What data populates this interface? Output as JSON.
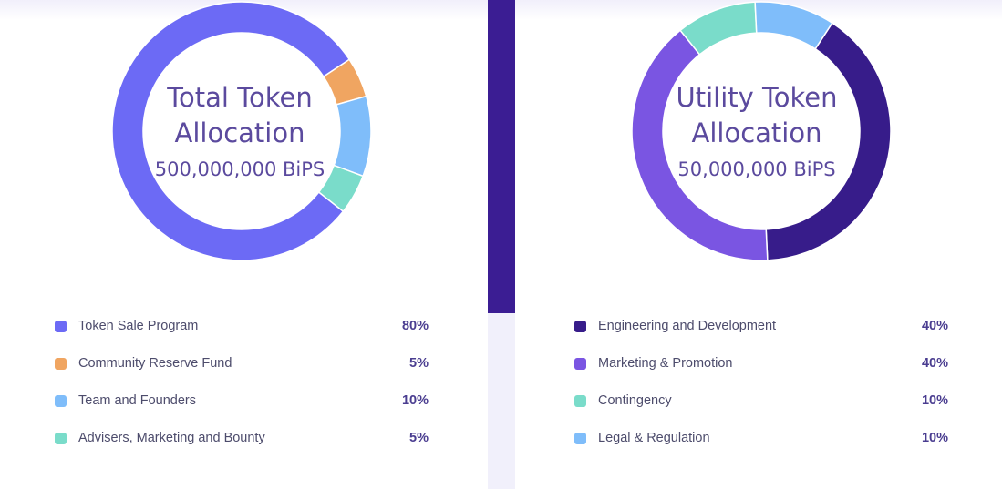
{
  "chart_data": [
    {
      "type": "pie",
      "donut": true,
      "title": "Total Token Allocation",
      "subtitle": "500,000,000 BiPS",
      "series": [
        {
          "label": "Token Sale Program",
          "value": 80,
          "value_label": "80%",
          "color": "#6c6af5"
        },
        {
          "label": "Community Reserve Fund",
          "value": 5,
          "value_label": "5%",
          "color": "#f0a561"
        },
        {
          "label": "Team and Founders",
          "value": 10,
          "value_label": "10%",
          "color": "#7fbdfa"
        },
        {
          "label": "Advisers, Marketing and Bounty",
          "value": 5,
          "value_label": "5%",
          "color": "#7adcca"
        }
      ]
    },
    {
      "type": "pie",
      "donut": true,
      "title": "Utility Token Allocation",
      "subtitle": "50,000,000 BiPS",
      "series": [
        {
          "label": "Engineering and Development",
          "value": 40,
          "value_label": "40%",
          "color": "#371c8a"
        },
        {
          "label": "Marketing & Promotion",
          "value": 40,
          "value_label": "40%",
          "color": "#7a55e2"
        },
        {
          "label": "Contingency",
          "value": 10,
          "value_label": "10%",
          "color": "#7adcca"
        },
        {
          "label": "Legal & Regulation",
          "value": 10,
          "value_label": "10%",
          "color": "#7fbdfa"
        }
      ]
    }
  ],
  "left": {
    "title_line1": "Total Token",
    "title_line2": "Allocation",
    "amount": "500,000,000 BiPS"
  },
  "right": {
    "title_line1": "Utility Token",
    "title_line2": "Allocation",
    "amount": "50,000,000 BiPS"
  },
  "colors": {
    "divider_dark": "#3b1d93",
    "divider_light": "#f1f0fb",
    "title_text": "#5b4a9e",
    "percent_text": "#4a3d90"
  }
}
